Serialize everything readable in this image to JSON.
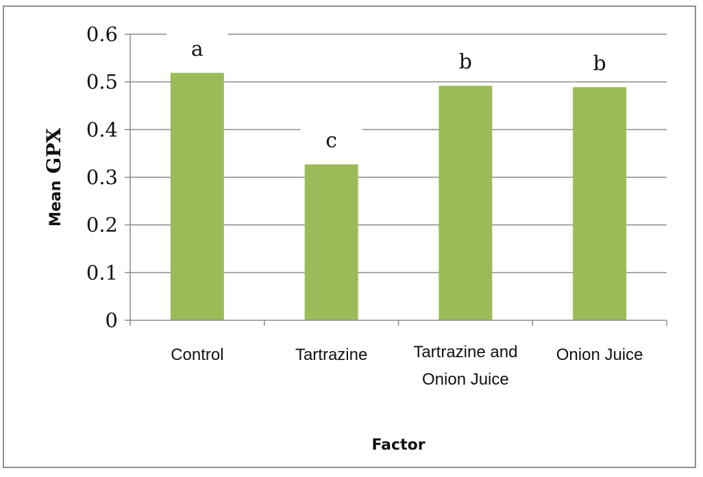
{
  "chart_data": {
    "type": "bar",
    "title": "",
    "xlabel": "Factor",
    "ylabel": "Mean GPX",
    "ylabel_parts": [
      "Mean",
      "GPX"
    ],
    "categories": [
      [
        "Control"
      ],
      [
        "Tartrazine"
      ],
      [
        "Tartrazine and",
        "Onion Juice"
      ],
      [
        "Onion Juice"
      ]
    ],
    "series": [
      {
        "values": [
          0.519,
          0.327,
          0.492,
          0.489
        ],
        "color": "#9bbb59"
      }
    ],
    "significance_labels": [
      "a",
      "c",
      "b",
      "b"
    ],
    "ylim": [
      0,
      0.6
    ],
    "yticks": [
      "0",
      "0.1",
      "0.2",
      "0.3",
      "0.4",
      "0.5",
      "0.6"
    ],
    "grid": true,
    "legend": false
  }
}
